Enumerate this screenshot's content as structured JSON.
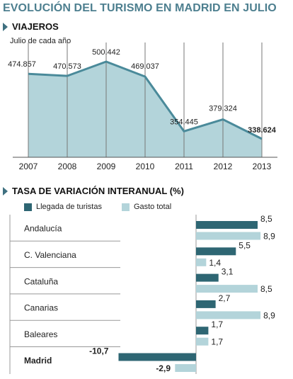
{
  "title": "EVOLUCIÓN DEL TURISMO EN MADRID EN JULIO",
  "colors": {
    "title": "#4d7f8f",
    "area_fill": "#b3d4da",
    "area_line": "#4a8a9a",
    "dark_bar": "#2e6673",
    "light_bar": "#b3d4da",
    "grid": "#777777"
  },
  "chart_data": [
    {
      "type": "area",
      "title": "VIAJEROS",
      "subtitle": "Julio de cada año",
      "categories": [
        "2007",
        "2008",
        "2009",
        "2010",
        "2011",
        "2012",
        "2013"
      ],
      "values": [
        474857,
        470573,
        500442,
        469037,
        354445,
        379324,
        338624
      ],
      "value_labels": [
        "474.857",
        "470.573",
        "500.442",
        "469.037",
        "354.445",
        "379.324",
        "338.624"
      ],
      "highlight_last": true,
      "grid": "vertical"
    },
    {
      "type": "bar",
      "orientation": "horizontal",
      "title": "TASA DE VARIACIÓN INTERANUAL (%)",
      "legend_position": "top-left",
      "categories": [
        "Andalucía",
        "C. Valenciana",
        "Cataluña",
        "Canarias",
        "Baleares",
        "Madrid"
      ],
      "bold_categories": [
        "Madrid"
      ],
      "series": [
        {
          "name": "Llegada de turistas",
          "values": [
            8.5,
            5.5,
            3.1,
            2.7,
            1.7,
            -10.7
          ],
          "labels": [
            "8,5",
            "5,5",
            "3,1",
            "2,7",
            "1,7",
            "-10,7"
          ]
        },
        {
          "name": "Gasto total",
          "values": [
            8.9,
            1.4,
            8.5,
            8.9,
            1.7,
            -2.9
          ],
          "labels": [
            "8,9",
            "1,4",
            "8,5",
            "8,9",
            "1,7",
            "-2,9"
          ]
        }
      ]
    }
  ]
}
